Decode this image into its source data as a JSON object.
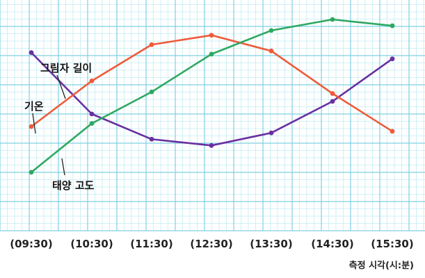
{
  "chart_data": {
    "type": "line",
    "categories": [
      "(09:30)",
      "(10:30)",
      "(11:30)",
      "(12:30)",
      "(13:30)",
      "(14:30)",
      "(15:30)"
    ],
    "xlabel": "측정 시각(시:분)",
    "ylabel": "",
    "ylim": [
      0,
      12
    ],
    "grid": true,
    "series": [
      {
        "name": "그림자 길이",
        "color": "#6a2fa0",
        "values": [
          9.9,
          6.0,
          4.4,
          4.0,
          4.8,
          6.8,
          9.5
        ]
      },
      {
        "name": "기온",
        "color": "#ef5a3a",
        "values": [
          5.2,
          8.1,
          10.4,
          11.0,
          10.0,
          7.3,
          4.9
        ]
      },
      {
        "name": "태양 고도",
        "color": "#2ea861",
        "values": [
          2.3,
          5.4,
          7.4,
          9.8,
          11.3,
          12.0,
          11.6
        ]
      }
    ]
  }
}
